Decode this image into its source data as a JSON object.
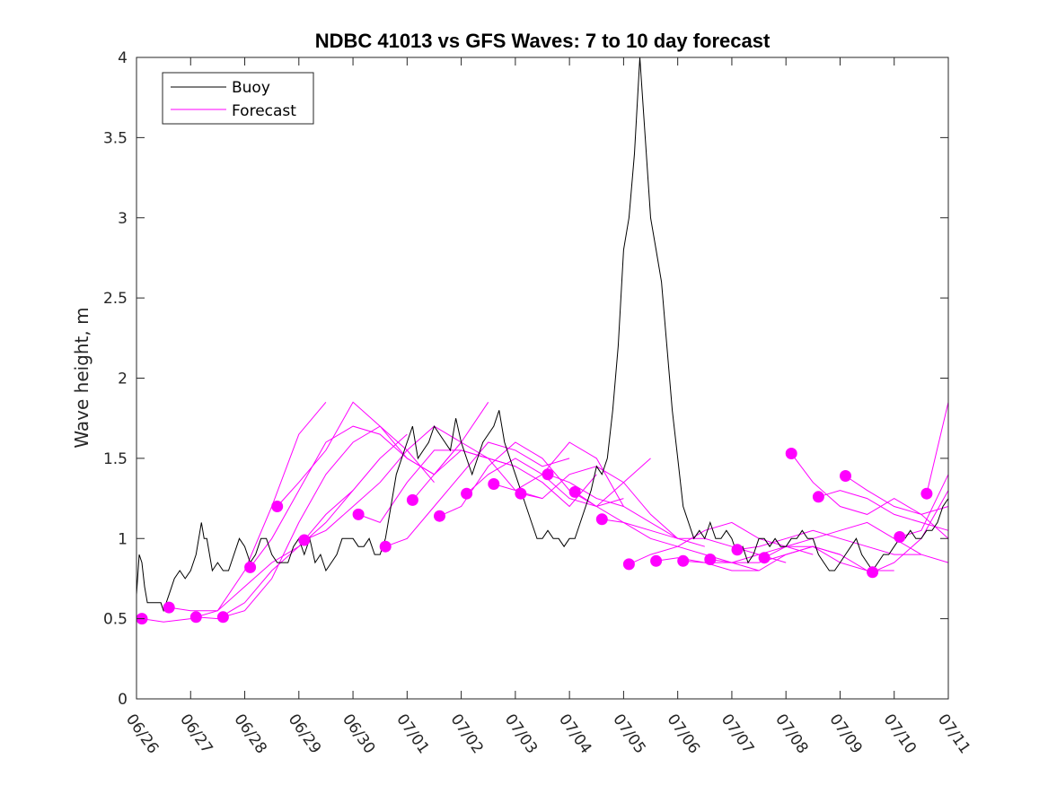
{
  "chart_data": {
    "type": "line",
    "title": "NDBC 41013 vs GFS Waves: 7 to 10 day forecast",
    "xlabel": "",
    "ylabel": "Wave height, m",
    "xlim": [
      0,
      15
    ],
    "ylim": [
      0,
      4
    ],
    "x_tick_labels": [
      "06/26",
      "06/27",
      "06/28",
      "06/29",
      "06/30",
      "07/01",
      "07/02",
      "07/03",
      "07/04",
      "07/05",
      "07/06",
      "07/07",
      "07/08",
      "07/09",
      "07/10",
      "07/11"
    ],
    "y_ticks": [
      0,
      0.5,
      1,
      1.5,
      2,
      2.5,
      3,
      3.5,
      4
    ],
    "y_tick_labels": [
      "0",
      "0.5",
      "1",
      "1.5",
      "2",
      "2.5",
      "3",
      "3.5",
      "4"
    ],
    "grid": false,
    "legend_position": "top-left",
    "legend": [
      {
        "label": "Buoy",
        "color": "#000000"
      },
      {
        "label": "Forecast",
        "color": "#ff00ff"
      }
    ],
    "buoy": {
      "name": "Buoy",
      "color": "#000000",
      "x": [
        0,
        0.05,
        0.1,
        0.15,
        0.2,
        0.3,
        0.45,
        0.5,
        0.6,
        0.7,
        0.8,
        0.9,
        1.0,
        1.1,
        1.2,
        1.25,
        1.3,
        1.4,
        1.5,
        1.6,
        1.7,
        1.8,
        1.9,
        2.0,
        2.1,
        2.2,
        2.3,
        2.4,
        2.5,
        2.6,
        2.7,
        2.8,
        2.9,
        3.0,
        3.1,
        3.2,
        3.3,
        3.4,
        3.5,
        3.6,
        3.7,
        3.8,
        3.9,
        4.0,
        4.1,
        4.2,
        4.3,
        4.4,
        4.5,
        4.6,
        4.7,
        4.8,
        4.9,
        5.0,
        5.1,
        5.15,
        5.2,
        5.3,
        5.4,
        5.5,
        5.6,
        5.7,
        5.8,
        5.9,
        6.0,
        6.1,
        6.2,
        6.3,
        6.4,
        6.5,
        6.6,
        6.7,
        6.8,
        6.9,
        7.0,
        7.1,
        7.2,
        7.3,
        7.4,
        7.5,
        7.6,
        7.7,
        7.8,
        7.9,
        8.0,
        8.1,
        8.2,
        8.3,
        8.4,
        8.5,
        8.6,
        8.7,
        8.8,
        8.9,
        9.0,
        9.1,
        9.2,
        9.3,
        9.4,
        9.5,
        9.6,
        9.7,
        9.8,
        9.9,
        10.0,
        10.1,
        10.2,
        10.3,
        10.4,
        10.5,
        10.6,
        10.7,
        10.8,
        10.9,
        11.0,
        11.1,
        11.2,
        11.3,
        11.4,
        11.5,
        11.6,
        11.7,
        11.8,
        11.9,
        12.0,
        12.1,
        12.2,
        12.3,
        12.4,
        12.5,
        12.6,
        12.7,
        12.8,
        12.9,
        13.0,
        13.1,
        13.2,
        13.3,
        13.4,
        13.5,
        13.6,
        13.7,
        13.8,
        13.9,
        14.0,
        14.1,
        14.2,
        14.3,
        14.4,
        14.5,
        14.6,
        14.7,
        14.8,
        14.9,
        15.0
      ],
      "values": [
        0.65,
        0.9,
        0.85,
        0.7,
        0.6,
        0.6,
        0.6,
        0.55,
        0.65,
        0.75,
        0.8,
        0.75,
        0.8,
        0.9,
        1.1,
        1.0,
        1.0,
        0.8,
        0.85,
        0.8,
        0.8,
        0.9,
        1.0,
        0.95,
        0.85,
        0.9,
        1.0,
        1.0,
        0.9,
        0.85,
        0.85,
        0.85,
        0.95,
        1.0,
        0.9,
        1.0,
        0.85,
        0.9,
        0.8,
        0.85,
        0.9,
        1.0,
        1.0,
        1.0,
        0.95,
        0.95,
        1.0,
        0.9,
        0.9,
        1.0,
        1.2,
        1.4,
        1.5,
        1.6,
        1.7,
        1.6,
        1.5,
        1.55,
        1.6,
        1.7,
        1.65,
        1.6,
        1.55,
        1.75,
        1.6,
        1.5,
        1.4,
        1.5,
        1.6,
        1.65,
        1.7,
        1.8,
        1.6,
        1.5,
        1.4,
        1.3,
        1.2,
        1.1,
        1.0,
        1.0,
        1.05,
        1.0,
        1.0,
        0.95,
        1.0,
        1.0,
        1.1,
        1.2,
        1.3,
        1.45,
        1.4,
        1.5,
        1.8,
        2.2,
        2.8,
        3.0,
        3.4,
        4.0,
        3.5,
        3.0,
        2.8,
        2.6,
        2.2,
        1.8,
        1.5,
        1.2,
        1.1,
        1.0,
        1.05,
        1.0,
        1.1,
        1.0,
        1.0,
        1.05,
        1.0,
        0.9,
        0.95,
        0.85,
        0.9,
        1.0,
        1.0,
        0.95,
        1.0,
        0.95,
        0.95,
        1.0,
        1.0,
        1.05,
        1.0,
        1.0,
        0.9,
        0.85,
        0.8,
        0.8,
        0.85,
        0.9,
        0.95,
        1.0,
        0.9,
        0.85,
        0.8,
        0.85,
        0.9,
        0.9,
        0.95,
        1.0,
        1.0,
        1.05,
        1.0,
        1.0,
        1.05,
        1.05,
        1.1,
        1.2,
        1.25
      ]
    },
    "forecasts": [
      {
        "x": [
          0.1,
          0.5,
          1.0,
          1.5,
          2.0,
          2.5,
          3.0,
          3.5,
          4.0
        ],
        "values": [
          0.5,
          0.48,
          0.5,
          0.55,
          0.7,
          0.85,
          0.95,
          1.1,
          1.3
        ]
      },
      {
        "x": [
          0.6,
          1.0,
          1.5,
          2.0,
          2.5,
          3.0,
          3.5
        ],
        "values": [
          0.57,
          0.55,
          0.55,
          0.8,
          1.2,
          1.65,
          1.85
        ]
      },
      {
        "x": [
          1.1,
          1.5,
          2.0,
          2.5,
          3.0,
          3.5,
          4.0,
          4.5,
          5.0
        ],
        "values": [
          0.51,
          0.5,
          0.6,
          0.8,
          0.95,
          1.15,
          1.3,
          1.5,
          1.65
        ]
      },
      {
        "x": [
          1.6,
          2.0,
          2.5,
          3.0,
          3.5,
          4.0,
          4.5,
          5.0,
          5.5
        ],
        "values": [
          0.51,
          0.55,
          0.75,
          1.1,
          1.4,
          1.6,
          1.7,
          1.55,
          1.35
        ]
      },
      {
        "x": [
          2.1,
          2.5,
          3.0,
          3.5,
          4.0,
          4.5,
          5.0,
          5.5,
          6.0
        ],
        "values": [
          0.82,
          1.0,
          1.3,
          1.6,
          1.7,
          1.65,
          1.5,
          1.4,
          1.6
        ]
      },
      {
        "x": [
          2.6,
          3.0,
          3.5,
          4.0,
          4.5,
          5.0,
          5.5,
          6.0,
          6.5
        ],
        "values": [
          1.2,
          1.35,
          1.55,
          1.85,
          1.7,
          1.5,
          1.4,
          1.6,
          1.85
        ]
      },
      {
        "x": [
          3.1,
          3.5,
          4.0,
          4.5,
          5.0,
          5.5,
          6.0,
          6.5,
          7.0
        ],
        "values": [
          0.99,
          1.05,
          1.2,
          1.35,
          1.55,
          1.7,
          1.6,
          1.5,
          1.45
        ]
      },
      {
        "x": [
          4.1,
          4.5,
          5.0,
          5.5,
          6.0,
          6.5,
          7.0,
          7.5
        ],
        "values": [
          1.15,
          1.1,
          1.35,
          1.55,
          1.55,
          1.5,
          1.3,
          1.25
        ]
      },
      {
        "x": [
          4.6,
          5.0,
          5.5,
          6.0,
          6.5,
          7.0,
          7.5,
          8.0
        ],
        "values": [
          0.95,
          1.0,
          1.2,
          1.4,
          1.6,
          1.55,
          1.45,
          1.5
        ]
      },
      {
        "x": [
          5.1,
          5.5,
          6.0,
          6.5,
          7.0,
          7.5,
          8.0,
          8.5
        ],
        "values": [
          1.24,
          1.4,
          1.55,
          1.5,
          1.45,
          1.35,
          1.2,
          1.4
        ]
      },
      {
        "x": [
          5.6,
          6.0,
          6.5,
          7.0,
          7.5,
          8.0,
          8.5,
          9.0
        ],
        "values": [
          1.14,
          1.2,
          1.45,
          1.6,
          1.5,
          1.3,
          1.2,
          1.25
        ]
      },
      {
        "x": [
          6.1,
          6.5,
          7.0,
          7.5,
          8.0,
          8.5,
          9.0,
          9.5
        ],
        "values": [
          1.28,
          1.4,
          1.5,
          1.4,
          1.25,
          1.2,
          1.35,
          1.5
        ]
      },
      {
        "x": [
          6.6,
          7.0,
          7.5,
          8.0,
          8.5,
          9.0
        ],
        "values": [
          1.34,
          1.3,
          1.4,
          1.6,
          1.5,
          1.2
        ]
      },
      {
        "x": [
          7.1,
          7.5,
          8.0,
          8.5,
          9.0,
          9.5,
          10.0
        ],
        "values": [
          1.28,
          1.25,
          1.4,
          1.45,
          1.35,
          1.15,
          1.0
        ]
      },
      {
        "x": [
          7.6,
          8.0,
          8.5,
          9.0,
          9.5,
          10.0,
          10.5
        ],
        "values": [
          1.4,
          1.35,
          1.25,
          1.2,
          1.1,
          1.0,
          0.95
        ]
      },
      {
        "x": [
          8.1,
          8.5,
          9.0,
          9.5,
          10.0,
          10.5,
          11.0,
          11.5
        ],
        "values": [
          1.29,
          1.2,
          1.1,
          1.0,
          0.95,
          0.9,
          0.85,
          0.8
        ]
      },
      {
        "x": [
          8.6,
          9.0,
          9.5,
          10.0,
          10.5,
          11.0,
          11.5,
          12.0
        ],
        "values": [
          1.12,
          1.1,
          1.05,
          1.0,
          1.0,
          0.95,
          0.9,
          0.85
        ]
      },
      {
        "x": [
          9.1,
          9.5,
          10.0,
          10.5,
          11.0,
          11.5,
          12.0,
          12.5
        ],
        "values": [
          0.84,
          0.9,
          0.95,
          1.05,
          1.1,
          1.0,
          0.95,
          0.9
        ]
      },
      {
        "x": [
          9.6,
          10.0,
          10.5,
          11.0,
          11.5,
          12.0,
          12.5,
          13.0
        ],
        "values": [
          0.86,
          0.88,
          0.85,
          0.85,
          0.9,
          0.95,
          0.95,
          0.9
        ]
      },
      {
        "x": [
          10.1,
          10.5,
          11.0,
          11.5,
          12.0,
          12.5,
          13.0,
          13.5
        ],
        "values": [
          0.86,
          0.85,
          0.8,
          0.8,
          0.9,
          0.95,
          0.85,
          0.8
        ]
      },
      {
        "x": [
          10.6,
          11.0,
          11.5,
          12.0,
          12.5,
          13.0,
          13.5,
          14.0
        ],
        "values": [
          0.87,
          0.85,
          0.85,
          0.9,
          0.95,
          0.9,
          0.8,
          0.8
        ]
      },
      {
        "x": [
          11.1,
          11.5,
          12.0,
          12.5,
          13.0,
          13.5,
          14.0,
          14.5
        ],
        "values": [
          0.93,
          0.95,
          1.0,
          1.05,
          1.0,
          0.95,
          0.9,
          0.9
        ]
      },
      {
        "x": [
          11.6,
          12.0,
          12.5,
          13.0,
          13.5,
          14.0,
          14.5,
          15.0
        ],
        "values": [
          0.88,
          0.95,
          1.0,
          1.05,
          1.1,
          1.0,
          0.9,
          0.85
        ]
      },
      {
        "x": [
          12.1,
          12.5,
          13.0,
          13.5,
          14.0,
          14.5,
          15.0
        ],
        "values": [
          1.53,
          1.35,
          1.2,
          1.15,
          1.25,
          1.15,
          1.0
        ]
      },
      {
        "x": [
          12.6,
          13.0,
          13.5,
          14.0,
          14.5,
          15.0
        ],
        "values": [
          1.26,
          1.3,
          1.25,
          1.15,
          1.1,
          1.05
        ]
      },
      {
        "x": [
          13.1,
          13.5,
          14.0,
          14.5,
          15.0
        ],
        "values": [
          1.39,
          1.3,
          1.2,
          1.15,
          1.2
        ]
      },
      {
        "x": [
          13.6,
          14.0,
          14.5,
          15.0
        ],
        "values": [
          0.79,
          0.85,
          1.0,
          1.3
        ]
      },
      {
        "x": [
          14.1,
          14.5,
          15.0
        ],
        "values": [
          1.01,
          1.05,
          1.4
        ]
      },
      {
        "x": [
          14.6,
          15.0
        ],
        "values": [
          1.28,
          1.85
        ]
      }
    ],
    "forecast_markers": {
      "name": "Forecast",
      "color": "#ff00ff",
      "x": [
        0.1,
        0.6,
        1.1,
        1.6,
        2.1,
        2.6,
        3.1,
        4.1,
        4.6,
        5.1,
        5.6,
        6.1,
        6.6,
        7.1,
        7.6,
        8.1,
        8.6,
        9.1,
        9.6,
        10.1,
        10.6,
        11.1,
        11.6,
        12.1,
        12.6,
        13.1,
        13.6,
        14.1,
        14.6
      ],
      "values": [
        0.5,
        0.57,
        0.51,
        0.51,
        0.82,
        1.2,
        0.99,
        1.15,
        0.95,
        1.24,
        1.14,
        1.28,
        1.34,
        1.28,
        1.4,
        1.29,
        1.12,
        0.84,
        0.86,
        0.86,
        0.87,
        0.93,
        0.88,
        1.53,
        1.26,
        1.39,
        0.79,
        1.01,
        1.28
      ]
    }
  }
}
